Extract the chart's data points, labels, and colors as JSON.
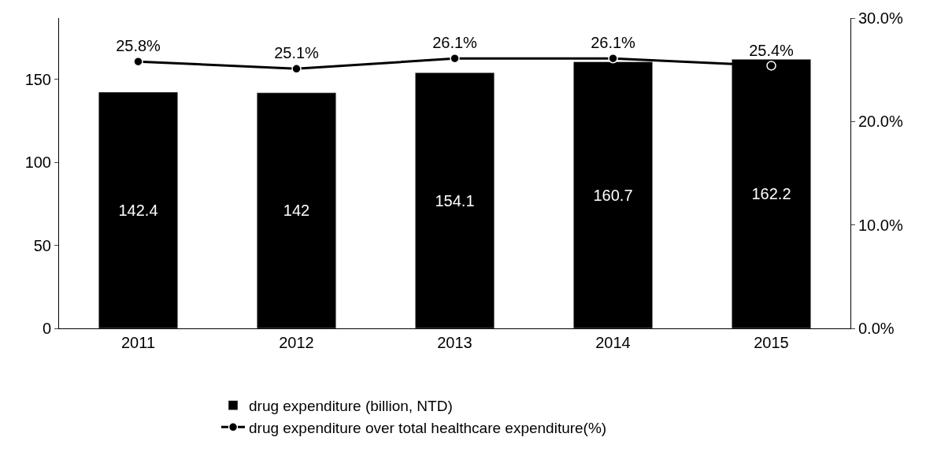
{
  "chart_data": {
    "type": "bar",
    "categories": [
      "2011",
      "2012",
      "2013",
      "2014",
      "2015"
    ],
    "series": [
      {
        "name": "drug expenditure (billion, NTD)",
        "color": "#000000",
        "values": [
          142.4,
          142,
          154.1,
          160.7,
          162.2
        ],
        "value_labels": [
          "142.4",
          "142",
          "154.1",
          "160.7",
          "162.2"
        ]
      },
      {
        "name": "drug expenditure over total healthcare expenditure(%)",
        "type": "line",
        "axis": "y2",
        "color": "#000000",
        "marker": "circle",
        "values": [
          25.8,
          25.1,
          26.1,
          26.1,
          25.4
        ],
        "value_labels": [
          "25.8%",
          "25.1%",
          "26.1%",
          "26.1%",
          "25.4%"
        ]
      }
    ],
    "ylim": [
      0,
      187
    ],
    "yticks": [
      0,
      50,
      100,
      150
    ],
    "y2lim": [
      0,
      30
    ],
    "y2ticks": [
      {
        "value": 0,
        "label": "0.0%"
      },
      {
        "value": 10,
        "label": "10.0%"
      },
      {
        "value": 20,
        "label": "20.0%"
      },
      {
        "value": 30,
        "label": "30.0%"
      }
    ],
    "grid": false,
    "legend": "bottom"
  }
}
